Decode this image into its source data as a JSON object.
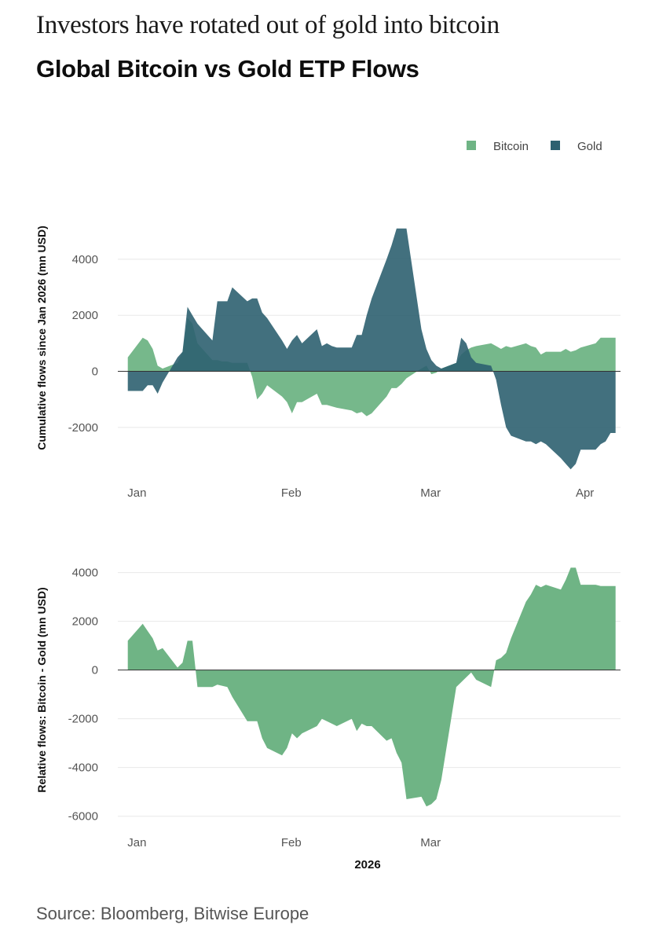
{
  "header": {
    "subtitle": "Investors have rotated out of gold into bitcoin",
    "title": "Global Bitcoin vs Gold ETP Flows"
  },
  "source": "Source: Bloomberg, Bitwise Europe",
  "colors": {
    "bitcoin": "#6fb485",
    "gold": "#2d6170",
    "grid": "#e8e8e8",
    "zero": "#333333"
  },
  "chart_data": [
    {
      "type": "area",
      "ylabel": "Cumulative flows since Jan 2026 (mn USD)",
      "legend": {
        "position": "top-right",
        "items": [
          "Bitcoin",
          "Gold"
        ]
      },
      "ylim": [
        -3800,
        5400
      ],
      "yticks": [
        -2000,
        0,
        2000,
        4000
      ],
      "ytick_labels": [
        "-2000",
        "0",
        "2000",
        "4000"
      ],
      "xticks": [
        "2026-01-01",
        "2026-02-01",
        "2026-03-01",
        "2026-04-01"
      ],
      "xtick_labels": [
        "Jan",
        "Feb",
        "Mar",
        "Apr"
      ],
      "x_range": [
        "2025-12-31",
        "2026-04-11"
      ],
      "grid": true,
      "series": [
        {
          "name": "Bitcoin",
          "x": [
            "2026-01-02",
            "2026-01-05",
            "2026-01-06",
            "2026-01-07",
            "2026-01-08",
            "2026-01-09",
            "2026-01-12",
            "2026-01-13",
            "2026-01-14",
            "2026-01-15",
            "2026-01-16",
            "2026-01-19",
            "2026-01-20",
            "2026-01-21",
            "2026-01-22",
            "2026-01-23",
            "2026-01-26",
            "2026-01-27",
            "2026-01-28",
            "2026-01-29",
            "2026-01-30",
            "2026-02-02",
            "2026-02-03",
            "2026-02-04",
            "2026-02-05",
            "2026-02-06",
            "2026-02-09",
            "2026-02-10",
            "2026-02-11",
            "2026-02-12",
            "2026-02-13",
            "2026-02-16",
            "2026-02-17",
            "2026-02-18",
            "2026-02-19",
            "2026-02-20",
            "2026-02-23",
            "2026-02-24",
            "2026-02-25",
            "2026-02-26",
            "2026-02-27",
            "2026-03-02",
            "2026-03-03",
            "2026-03-04",
            "2026-03-05",
            "2026-03-06",
            "2026-03-09",
            "2026-03-10",
            "2026-03-11",
            "2026-03-12",
            "2026-03-13",
            "2026-03-16",
            "2026-03-17",
            "2026-03-18",
            "2026-03-19",
            "2026-03-20",
            "2026-03-23",
            "2026-03-24",
            "2026-03-25",
            "2026-03-26",
            "2026-03-27",
            "2026-03-30",
            "2026-03-31",
            "2026-04-01",
            "2026-04-02",
            "2026-04-03",
            "2026-04-06",
            "2026-04-07",
            "2026-04-08",
            "2026-04-09",
            "2026-04-10"
          ],
          "values": [
            500,
            1200,
            1100,
            800,
            200,
            100,
            300,
            700,
            1900,
            1700,
            1000,
            400,
            400,
            350,
            350,
            300,
            300,
            -200,
            -1000,
            -800,
            -500,
            -900,
            -1100,
            -1500,
            -1100,
            -1100,
            -800,
            -1200,
            -1200,
            -1250,
            -1300,
            -1400,
            -1500,
            -1450,
            -1600,
            -1500,
            -900,
            -600,
            -600,
            -450,
            -250,
            100,
            200,
            -100,
            -50,
            100,
            300,
            600,
            750,
            850,
            900,
            1000,
            900,
            800,
            900,
            850,
            1000,
            900,
            850,
            600,
            700,
            700,
            800,
            700,
            750,
            850,
            1000,
            1200,
            1200,
            1200,
            1200
          ]
        },
        {
          "name": "Gold",
          "x": [
            "2026-01-02",
            "2026-01-05",
            "2026-01-06",
            "2026-01-07",
            "2026-01-08",
            "2026-01-09",
            "2026-01-12",
            "2026-01-13",
            "2026-01-14",
            "2026-01-15",
            "2026-01-16",
            "2026-01-19",
            "2026-01-20",
            "2026-01-21",
            "2026-01-22",
            "2026-01-23",
            "2026-01-26",
            "2026-01-27",
            "2026-01-28",
            "2026-01-29",
            "2026-01-30",
            "2026-02-02",
            "2026-02-03",
            "2026-02-04",
            "2026-02-05",
            "2026-02-06",
            "2026-02-09",
            "2026-02-10",
            "2026-02-11",
            "2026-02-12",
            "2026-02-13",
            "2026-02-16",
            "2026-02-17",
            "2026-02-18",
            "2026-02-19",
            "2026-02-20",
            "2026-02-23",
            "2026-02-24",
            "2026-02-25",
            "2026-02-26",
            "2026-02-27",
            "2026-03-02",
            "2026-03-03",
            "2026-03-04",
            "2026-03-05",
            "2026-03-06",
            "2026-03-09",
            "2026-03-10",
            "2026-03-11",
            "2026-03-12",
            "2026-03-13",
            "2026-03-16",
            "2026-03-17",
            "2026-03-18",
            "2026-03-19",
            "2026-03-20",
            "2026-03-23",
            "2026-03-24",
            "2026-03-25",
            "2026-03-26",
            "2026-03-27",
            "2026-03-30",
            "2026-03-31",
            "2026-04-01",
            "2026-04-02",
            "2026-04-03",
            "2026-04-06",
            "2026-04-07",
            "2026-04-08",
            "2026-04-09",
            "2026-04-10"
          ],
          "values": [
            -700,
            -700,
            -500,
            -500,
            -800,
            -400,
            500,
            700,
            2300,
            2000,
            1700,
            1100,
            2500,
            2500,
            2500,
            3000,
            2500,
            2600,
            2600,
            2100,
            1900,
            1100,
            800,
            1100,
            1300,
            1000,
            1500,
            900,
            1000,
            900,
            850,
            850,
            1300,
            1300,
            2000,
            2600,
            4000,
            4500,
            5100,
            5100,
            5100,
            1500,
            800,
            400,
            200,
            100,
            300,
            1200,
            1000,
            500,
            300,
            200,
            -300,
            -1200,
            -2000,
            -2300,
            -2500,
            -2500,
            -2600,
            -2500,
            -2600,
            -3100,
            -3300,
            -3500,
            -3300,
            -2800,
            -2800,
            -2600,
            -2500,
            -2200,
            -2200
          ]
        }
      ]
    },
    {
      "type": "area",
      "ylabel": "Relative flows: Bitcoin - Gold (mn USD)",
      "xlabel": "2026",
      "ylim": [
        -6300,
        4600
      ],
      "yticks": [
        -6000,
        -4000,
        -2000,
        0,
        2000,
        4000
      ],
      "ytick_labels": [
        "-6000",
        "-4000",
        "-2000",
        "0",
        "2000",
        "4000"
      ],
      "xticks": [
        "2026-01-01",
        "2026-02-01",
        "2026-03-01"
      ],
      "xtick_labels": [
        "Jan",
        "Feb",
        "Mar"
      ],
      "x_range": [
        "2025-12-31",
        "2026-04-11"
      ],
      "grid": true,
      "series": [
        {
          "name": "Bitcoin - Gold",
          "x": [
            "2026-01-02",
            "2026-01-05",
            "2026-01-06",
            "2026-01-07",
            "2026-01-08",
            "2026-01-09",
            "2026-01-12",
            "2026-01-13",
            "2026-01-14",
            "2026-01-15",
            "2026-01-16",
            "2026-01-19",
            "2026-01-20",
            "2026-01-21",
            "2026-01-22",
            "2026-01-23",
            "2026-01-26",
            "2026-01-27",
            "2026-01-28",
            "2026-01-29",
            "2026-01-30",
            "2026-02-02",
            "2026-02-03",
            "2026-02-04",
            "2026-02-05",
            "2026-02-06",
            "2026-02-09",
            "2026-02-10",
            "2026-02-11",
            "2026-02-12",
            "2026-02-13",
            "2026-02-16",
            "2026-02-17",
            "2026-02-18",
            "2026-02-19",
            "2026-02-20",
            "2026-02-23",
            "2026-02-24",
            "2026-02-25",
            "2026-02-26",
            "2026-02-27",
            "2026-03-02",
            "2026-03-03",
            "2026-03-04",
            "2026-03-05",
            "2026-03-06",
            "2026-03-09",
            "2026-03-10",
            "2026-03-11",
            "2026-03-12",
            "2026-03-13",
            "2026-03-16",
            "2026-03-17",
            "2026-03-18",
            "2026-03-19",
            "2026-03-20",
            "2026-03-23",
            "2026-03-24",
            "2026-03-25",
            "2026-03-26",
            "2026-03-27",
            "2026-03-30",
            "2026-03-31",
            "2026-04-01",
            "2026-04-02",
            "2026-04-03",
            "2026-04-06",
            "2026-04-07",
            "2026-04-08",
            "2026-04-09",
            "2026-04-10"
          ],
          "values": [
            1200,
            1900,
            1600,
            1300,
            800,
            900,
            100,
            300,
            1200,
            1200,
            -700,
            -700,
            -600,
            -650,
            -700,
            -1100,
            -2100,
            -2100,
            -2100,
            -2800,
            -3200,
            -3500,
            -3200,
            -2600,
            -2800,
            -2600,
            -2300,
            -2000,
            -2100,
            -2200,
            -2300,
            -2000,
            -2500,
            -2200,
            -2300,
            -2300,
            -2900,
            -2800,
            -3400,
            -3800,
            -5300,
            -5200,
            -5600,
            -5500,
            -5300,
            -4500,
            -700,
            -500,
            -300,
            -100,
            -400,
            -700,
            400,
            500,
            700,
            1300,
            2800,
            3100,
            3500,
            3400,
            3500,
            3300,
            3700,
            4200,
            4200,
            3500,
            3500,
            3450,
            3450,
            3450,
            3450
          ]
        }
      ]
    }
  ]
}
